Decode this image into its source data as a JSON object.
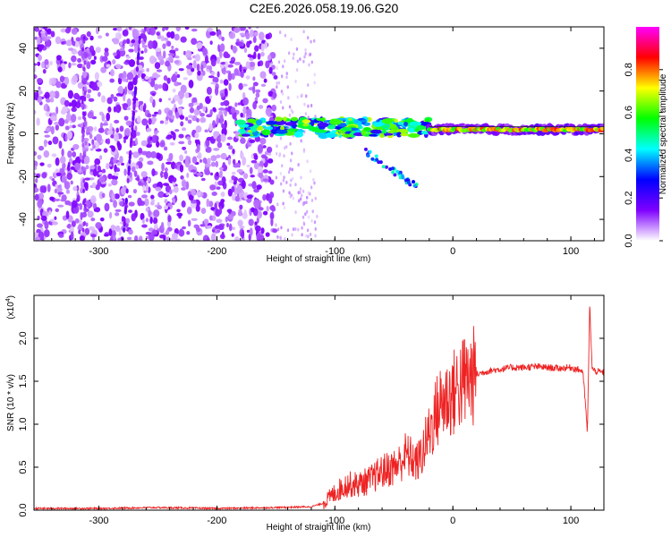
{
  "title": "C2E6.2026.058.19.06.G20",
  "chart_data": [
    {
      "type": "heatmap",
      "xlabel": "Height of straight line (km)",
      "ylabel": "Frequency (Hz)",
      "xlim": [
        -355,
        128
      ],
      "ylim": [
        -50,
        50
      ],
      "xticks": [
        -300,
        -200,
        -100,
        0,
        100
      ],
      "yticks": [
        -40,
        -20,
        0,
        20,
        40
      ],
      "colorbar": {
        "label": "Normalized spectral amplitude",
        "range": [
          0,
          1
        ],
        "ticks": [
          "0.0",
          "0.2",
          "0.4",
          "0.6",
          "0.8"
        ],
        "colors": [
          "#ffffff",
          "#7f00ff",
          "#0000ff",
          "#00ffff",
          "#00ff00",
          "#ffff00",
          "#ff0000",
          "#ff00ff"
        ]
      },
      "features": {
        "noise_region_x": [
          -355,
          -150
        ],
        "carrier_tone_freq": 2,
        "carrier_tone_x": [
          -20,
          128
        ],
        "scatter_branch_x": [
          -75,
          -30
        ],
        "scatter_branch_freq": [
          -8,
          -25
        ]
      }
    },
    {
      "type": "line",
      "xlabel": "Height of straight line (km)",
      "ylabel": "SNR (10 * v/v)",
      "y_multiplier": "(x10",
      "y_exponent": "4",
      "xlim": [
        -355,
        128
      ],
      "ylim": [
        0,
        2.5
      ],
      "xticks": [
        -300,
        -200,
        -100,
        0,
        100
      ],
      "yticks": [
        "0.0",
        "0.5",
        "1.0",
        "1.5",
        "2.0"
      ],
      "color": "#ee2222",
      "series": [
        {
          "x": [
            -355,
            -300,
            -250,
            -200,
            -150,
            -120,
            -110,
            -100,
            -90,
            -80,
            -70,
            -60,
            -50,
            -45,
            -40,
            -35,
            -30,
            -25,
            -20,
            -15,
            -10,
            -5,
            0,
            5,
            10,
            20,
            30,
            40,
            50,
            60,
            70,
            80,
            90,
            100,
            105,
            110,
            112,
            114,
            116,
            118,
            120,
            128
          ],
          "values": [
            0.02,
            0.02,
            0.03,
            0.02,
            0.03,
            0.04,
            0.08,
            0.2,
            0.3,
            0.3,
            0.35,
            0.45,
            0.5,
            0.55,
            0.65,
            0.6,
            0.55,
            0.7,
            0.9,
            1.1,
            1.25,
            1.3,
            1.35,
            1.45,
            1.5,
            1.58,
            1.62,
            1.64,
            1.66,
            1.66,
            1.67,
            1.66,
            1.65,
            1.66,
            1.64,
            1.62,
            1.3,
            0.9,
            2.4,
            1.65,
            1.62,
            1.6
          ]
        }
      ]
    }
  ]
}
